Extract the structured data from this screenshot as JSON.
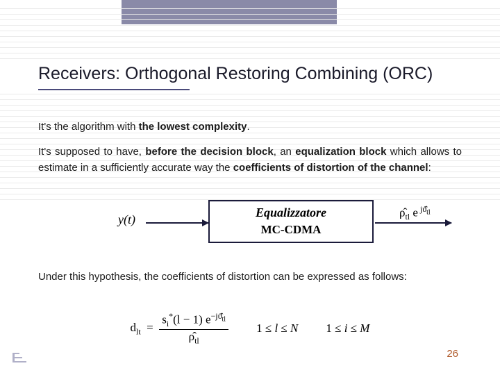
{
  "title": "Receivers: Orthogonal Restoring Combining (ORC)",
  "para1_html": "It's the algorithm with <b>the lowest complexity</b>.",
  "para2_html": "It's supposed to have, <b>before the decision block</b>, an <b>equalization block</b> which allows to estimate in a sufficiently accurate way the <b>coefficients of distortion of the channel</b>:",
  "para3": "Under this hypothesis, the coefficients of distortion can be expressed as follows:",
  "diagram": {
    "input": "y(t)",
    "box_line1": "Equalizzatore",
    "box_line2": "MC-CDMA",
    "output_html": "ρ̂<span class='sub'>tl</span> e<span class='sup'>&nbsp;jϑ̂<sub style='font-size:0.85em'>tl</sub></span>"
  },
  "formula": {
    "lhs_html": "d<span class='sub'>lt</span>",
    "numerator_html": "s<span class='sub'>i</span><span class='sup'>*</span>(l − 1) e<span class='sup'>−jϑ̂<sub style='font-size:0.85em'>tl</sub></span>",
    "denominator_html": "ρ̂<span class='sub'>tl</span>",
    "range1_html": "1 ≤ <i>l</i> ≤ <i>N</i>",
    "range2_html": "1 ≤ <i>i</i> ≤ <i>M</i>"
  },
  "page_number": "26",
  "colors": {
    "topbar": "#8a8aa8",
    "underline": "#4a4a7a",
    "pagenum": "#b05a2a",
    "gridline": "#eaeaea"
  },
  "hline_positions": [
    12,
    20,
    28,
    36,
    44,
    52,
    60,
    68,
    76,
    84,
    135,
    143,
    151,
    159,
    167,
    175,
    183,
    191,
    199,
    207,
    215,
    223,
    231,
    239,
    247,
    255,
    263,
    271,
    279,
    287
  ]
}
